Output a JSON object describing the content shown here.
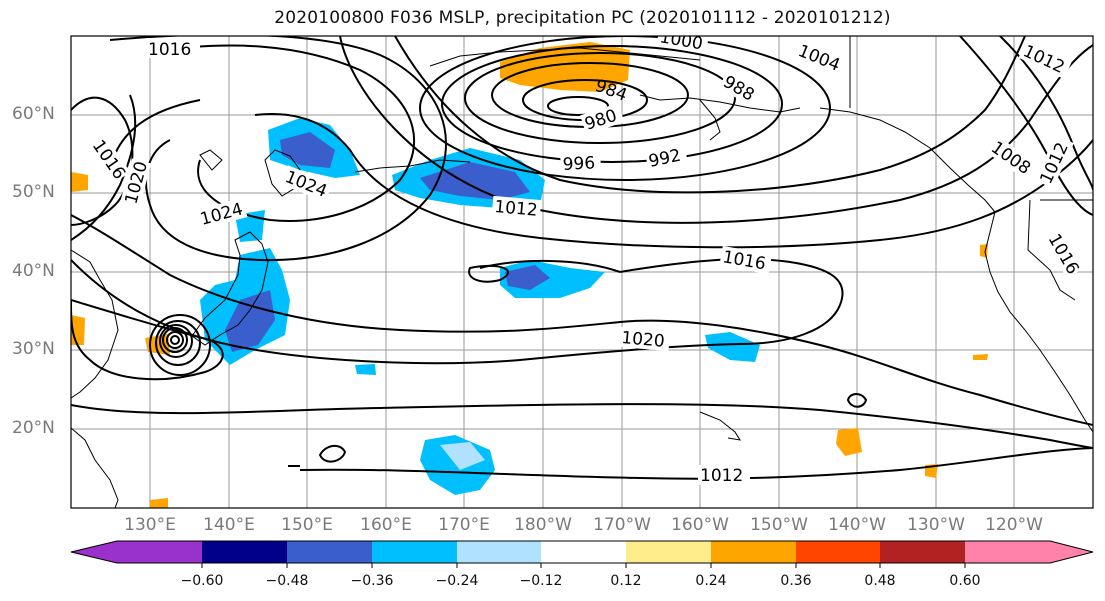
{
  "title": "2020100800 F036 MSLP, precipitation PC (2020101112 - 2020101212)",
  "map": {
    "lat_labels": [
      "60°N",
      "50°N",
      "40°N",
      "30°N",
      "20°N"
    ],
    "lon_labels": [
      "130°E",
      "140°E",
      "150°E",
      "160°E",
      "170°E",
      "180°W",
      "170°W",
      "160°W",
      "150°W",
      "140°W",
      "130°W",
      "120°W"
    ],
    "isobar_labels": [
      "1016",
      "1016",
      "1020",
      "1024",
      "1024",
      "1012",
      "996",
      "992",
      "980",
      "984",
      "988",
      "1004",
      "1000",
      "1012",
      "1008",
      "1012",
      "1016",
      "1020",
      "1012",
      "1016"
    ],
    "gridlines": true,
    "coastlines": true
  },
  "colorbar": {
    "ticks": [
      "−0.60",
      "−0.48",
      "−0.36",
      "−0.24",
      "−0.12",
      "0.12",
      "0.24",
      "0.36",
      "0.48",
      "0.60"
    ],
    "colors": [
      "#9932cc",
      "#00008b",
      "#3a5fcd",
      "#00bfff",
      "#b0e2ff",
      "#ffffff",
      "#ffec8b",
      "#ffa500",
      "#ff4500",
      "#b22222",
      "#ff82ab"
    ],
    "extend": "both"
  }
}
